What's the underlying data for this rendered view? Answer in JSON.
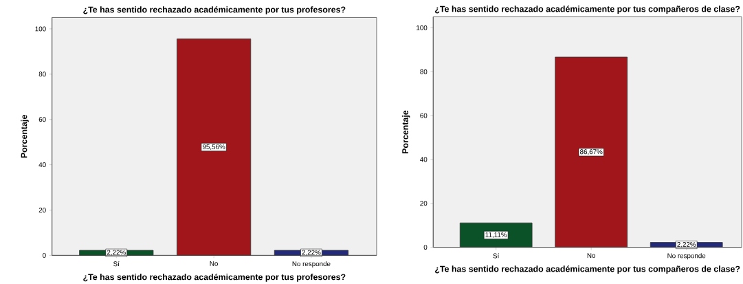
{
  "chart_data": [
    {
      "type": "bar",
      "title": "¿Te has sentido rechazado académicamente por tus profesores?",
      "xlabel": "¿Te has sentido rechazado académicamente por tus profesores?",
      "ylabel": "Porcentaje",
      "categories": [
        "Sí",
        "No",
        "No responde"
      ],
      "values": [
        2.22,
        95.56,
        2.22
      ],
      "colors": [
        "#0b5229",
        "#a1161a",
        "#232a7a"
      ],
      "value_labels": [
        "2,22%",
        "95,56%",
        "2,22%"
      ],
      "ylim": [
        0,
        105
      ],
      "yticks": [
        0,
        20,
        40,
        60,
        80,
        100
      ]
    },
    {
      "type": "bar",
      "title": "¿Te has sentido rechazado académicamente por tus compañeros de clase?",
      "xlabel": "¿Te has sentido rechazado académicamente por tus compañeros de clase?",
      "ylabel": "Porcentaje",
      "categories": [
        "Sí",
        "No",
        "No responde"
      ],
      "values": [
        11.11,
        86.67,
        2.22
      ],
      "colors": [
        "#0b5229",
        "#a1161a",
        "#232a7a"
      ],
      "value_labels": [
        "11,11%",
        "86,67%",
        "2,22%"
      ],
      "ylim": [
        0,
        105
      ],
      "yticks": [
        0,
        20,
        40,
        60,
        80,
        100
      ]
    }
  ]
}
